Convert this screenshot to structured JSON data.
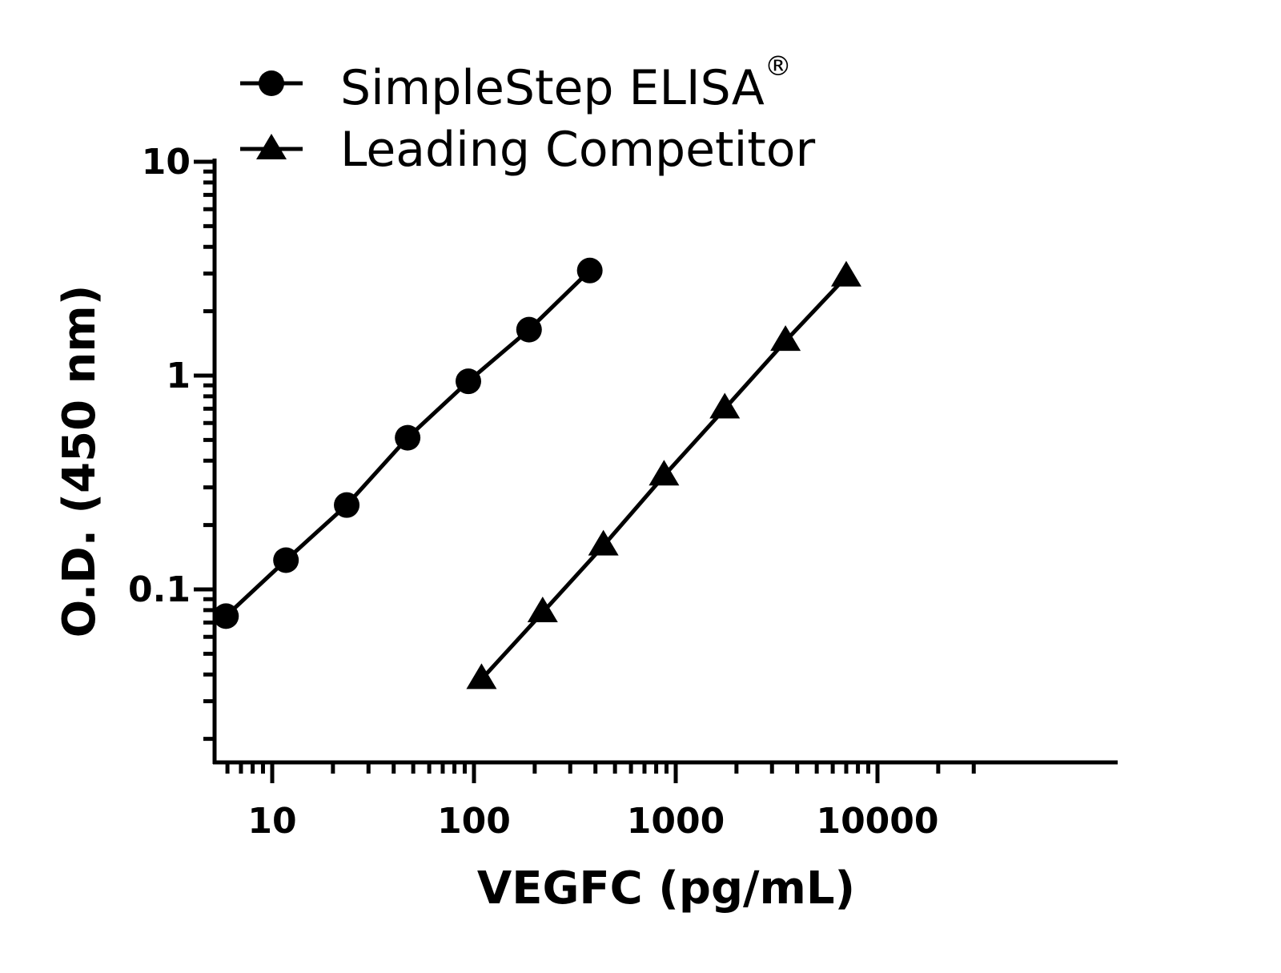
{
  "chart_data": {
    "type": "line",
    "title": "",
    "xlabel": "VEGFC (pg/mL)",
    "ylabel": "O.D. (450 nm)",
    "xscale": "log",
    "yscale": "log",
    "xlim": [
      1,
      30000
    ],
    "ylim": [
      0.02,
      10
    ],
    "xticks": [
      {
        "value": 10,
        "label": "10"
      },
      {
        "value": 100,
        "label": "100"
      },
      {
        "value": 1000,
        "label": "1000"
      },
      {
        "value": 10000,
        "label": "10000"
      }
    ],
    "yticks": [
      {
        "value": 0.1,
        "label": "0.1"
      },
      {
        "value": 1,
        "label": "1"
      },
      {
        "value": 10,
        "label": "10"
      }
    ],
    "legend": {
      "placement": "top-left",
      "registered_mark": "®"
    },
    "grid": false,
    "series": [
      {
        "name": "SimpleStep ELISA",
        "marker": "circle",
        "color": "#000000",
        "x": [
          5.9,
          11.7,
          23.4,
          46.9,
          93.8,
          187.5,
          375
        ],
        "y": [
          0.075,
          0.137,
          0.248,
          0.512,
          0.94,
          1.64,
          3.1
        ]
      },
      {
        "name": "Leading Competitor",
        "marker": "triangle",
        "color": "#000000",
        "x": [
          109,
          219,
          438,
          875,
          1750,
          3500,
          7000
        ],
        "y": [
          0.038,
          0.078,
          0.16,
          0.34,
          0.7,
          1.45,
          2.9
        ]
      }
    ]
  }
}
